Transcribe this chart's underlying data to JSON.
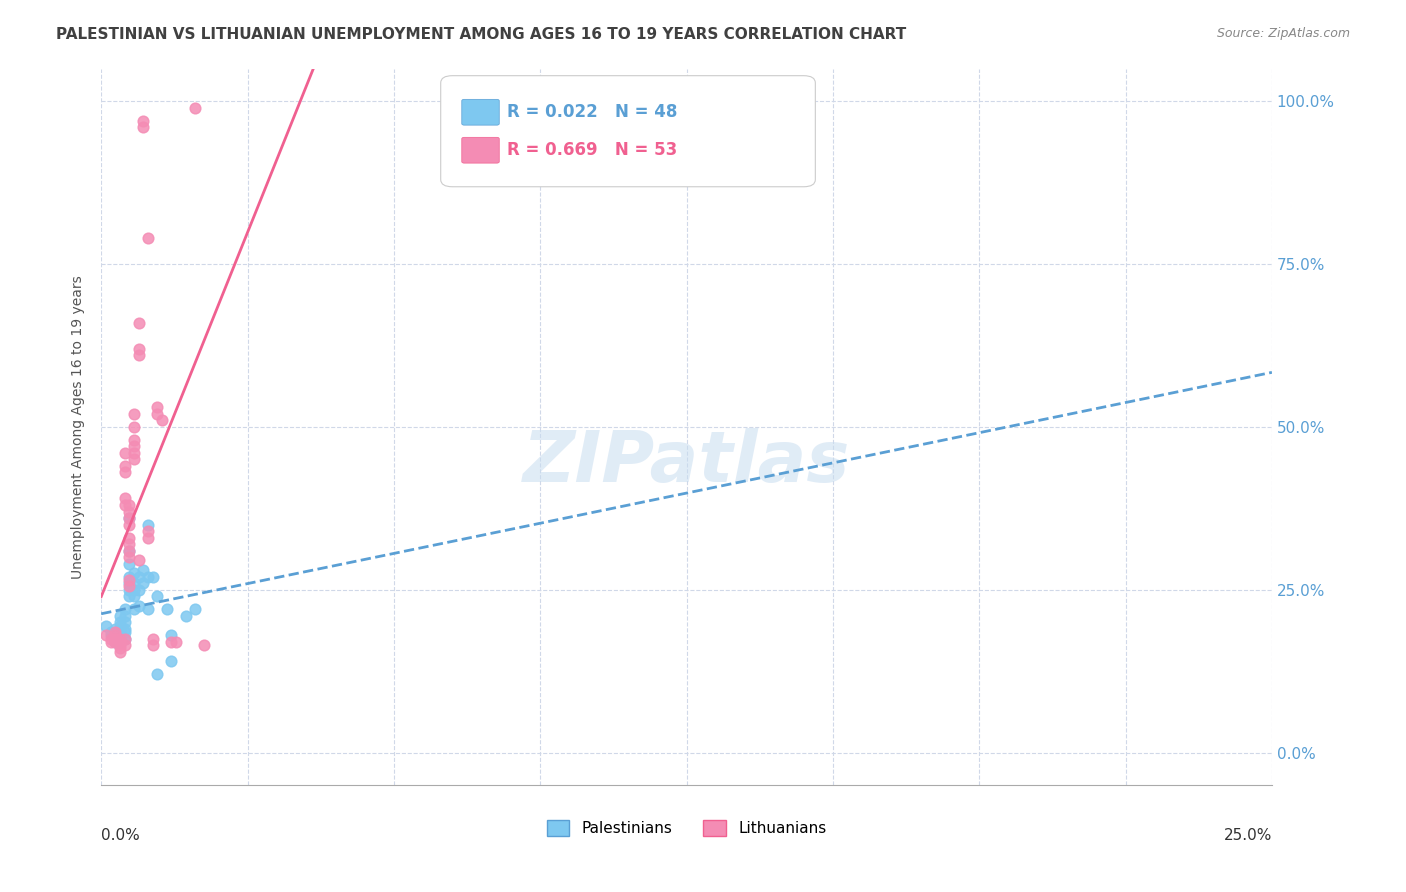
{
  "title": "PALESTINIAN VS LITHUANIAN UNEMPLOYMENT AMONG AGES 16 TO 19 YEARS CORRELATION CHART",
  "source": "Source: ZipAtlas.com",
  "ylabel": "Unemployment Among Ages 16 to 19 years",
  "watermark": "ZIPatlas",
  "palestinian_color": "#7ec8f0",
  "lithuanian_color": "#f48cb4",
  "palestinian_line_color": "#5a9fd4",
  "lithuanian_line_color": "#f06090",
  "background_color": "#ffffff",
  "grid_color": "#d0d8e8",
  "title_color": "#404040",
  "right_axis_color": "#5a9fd4",
  "pal_R": "0.022",
  "pal_N": "48",
  "lit_R": "0.669",
  "lit_N": "53",
  "palestinian_points": [
    [
      0.001,
      0.195
    ],
    [
      0.002,
      0.185
    ],
    [
      0.002,
      0.18
    ],
    [
      0.003,
      0.19
    ],
    [
      0.003,
      0.18
    ],
    [
      0.003,
      0.175
    ],
    [
      0.003,
      0.17
    ],
    [
      0.004,
      0.21
    ],
    [
      0.004,
      0.2
    ],
    [
      0.004,
      0.195
    ],
    [
      0.004,
      0.19
    ],
    [
      0.004,
      0.185
    ],
    [
      0.004,
      0.175
    ],
    [
      0.004,
      0.17
    ],
    [
      0.005,
      0.22
    ],
    [
      0.005,
      0.21
    ],
    [
      0.005,
      0.2
    ],
    [
      0.005,
      0.19
    ],
    [
      0.005,
      0.185
    ],
    [
      0.005,
      0.175
    ],
    [
      0.006,
      0.36
    ],
    [
      0.006,
      0.31
    ],
    [
      0.006,
      0.29
    ],
    [
      0.006,
      0.27
    ],
    [
      0.006,
      0.26
    ],
    [
      0.006,
      0.25
    ],
    [
      0.006,
      0.24
    ],
    [
      0.007,
      0.275
    ],
    [
      0.007,
      0.26
    ],
    [
      0.007,
      0.25
    ],
    [
      0.007,
      0.24
    ],
    [
      0.007,
      0.22
    ],
    [
      0.008,
      0.27
    ],
    [
      0.008,
      0.25
    ],
    [
      0.008,
      0.225
    ],
    [
      0.009,
      0.28
    ],
    [
      0.009,
      0.26
    ],
    [
      0.01,
      0.35
    ],
    [
      0.01,
      0.27
    ],
    [
      0.01,
      0.22
    ],
    [
      0.011,
      0.27
    ],
    [
      0.012,
      0.24
    ],
    [
      0.012,
      0.12
    ],
    [
      0.014,
      0.22
    ],
    [
      0.015,
      0.18
    ],
    [
      0.015,
      0.14
    ],
    [
      0.018,
      0.21
    ],
    [
      0.02,
      0.22
    ]
  ],
  "lithuanian_points": [
    [
      0.001,
      0.18
    ],
    [
      0.002,
      0.175
    ],
    [
      0.002,
      0.17
    ],
    [
      0.003,
      0.185
    ],
    [
      0.003,
      0.18
    ],
    [
      0.003,
      0.175
    ],
    [
      0.003,
      0.17
    ],
    [
      0.004,
      0.175
    ],
    [
      0.004,
      0.17
    ],
    [
      0.004,
      0.165
    ],
    [
      0.004,
      0.16
    ],
    [
      0.004,
      0.155
    ],
    [
      0.005,
      0.46
    ],
    [
      0.005,
      0.44
    ],
    [
      0.005,
      0.43
    ],
    [
      0.005,
      0.39
    ],
    [
      0.005,
      0.38
    ],
    [
      0.005,
      0.175
    ],
    [
      0.005,
      0.165
    ],
    [
      0.006,
      0.38
    ],
    [
      0.006,
      0.37
    ],
    [
      0.006,
      0.36
    ],
    [
      0.006,
      0.35
    ],
    [
      0.006,
      0.33
    ],
    [
      0.006,
      0.32
    ],
    [
      0.006,
      0.31
    ],
    [
      0.006,
      0.3
    ],
    [
      0.006,
      0.265
    ],
    [
      0.006,
      0.255
    ],
    [
      0.007,
      0.52
    ],
    [
      0.007,
      0.5
    ],
    [
      0.007,
      0.48
    ],
    [
      0.007,
      0.47
    ],
    [
      0.007,
      0.46
    ],
    [
      0.007,
      0.45
    ],
    [
      0.008,
      0.66
    ],
    [
      0.008,
      0.62
    ],
    [
      0.008,
      0.61
    ],
    [
      0.008,
      0.295
    ],
    [
      0.009,
      0.97
    ],
    [
      0.009,
      0.96
    ],
    [
      0.01,
      0.79
    ],
    [
      0.01,
      0.34
    ],
    [
      0.01,
      0.33
    ],
    [
      0.011,
      0.175
    ],
    [
      0.011,
      0.165
    ],
    [
      0.012,
      0.53
    ],
    [
      0.012,
      0.52
    ],
    [
      0.013,
      0.51
    ],
    [
      0.015,
      0.17
    ],
    [
      0.016,
      0.17
    ],
    [
      0.02,
      0.99
    ],
    [
      0.022,
      0.165
    ]
  ]
}
